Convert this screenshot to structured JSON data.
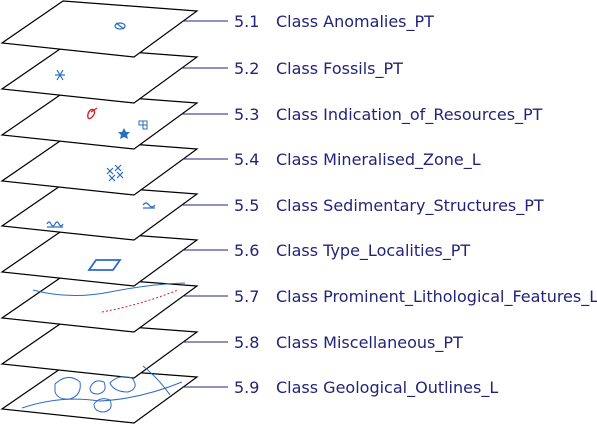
{
  "layers": [
    {
      "number": "5.1",
      "label": "Class Anomalies_PT"
    },
    {
      "number": "5.2",
      "label": "Class Fossils_PT"
    },
    {
      "number": "5.3",
      "label": "Class Indication_of_Resources_PT"
    },
    {
      "number": "5.4",
      "label": "Class Mineralised_Zone_L"
    },
    {
      "number": "5.5",
      "label": "Class Sedimentary_Structures_PT"
    },
    {
      "number": "5.6",
      "label": "Class Type_Localities_PT"
    },
    {
      "number": "5.7",
      "label": "Class Prominent_Lithological_Features_L"
    },
    {
      "number": "5.8",
      "label": "Class Miscellaneous_PT"
    },
    {
      "number": "5.9",
      "label": "Class Geological_Outlines_L"
    }
  ],
  "colors": {
    "text": "#23237a",
    "symbol": "#2b6cc4",
    "accent": "#d4202a",
    "outline": "#000000"
  },
  "symbols": [
    "anomaly-symbol",
    "fossil-symbol",
    "resource-symbols",
    "mineralised-zone-symbol",
    "sedimentary-structure-symbols",
    "type-locality-symbol",
    "lithological-feature-lines",
    "geological-outline-shapes"
  ]
}
